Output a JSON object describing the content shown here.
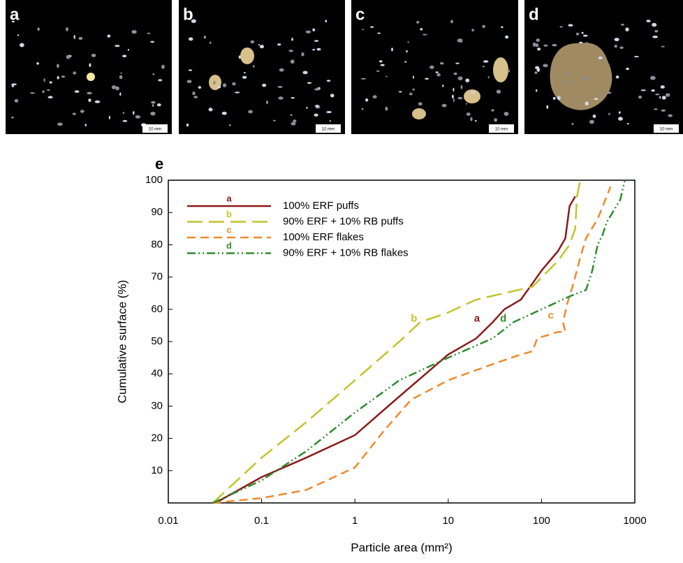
{
  "panels": [
    {
      "label": "a",
      "scale": "10 mm"
    },
    {
      "label": "b",
      "scale": "10 mm"
    },
    {
      "label": "c",
      "scale": "10 mm"
    },
    {
      "label": "d",
      "scale": "10 mm"
    }
  ],
  "chart_data": {
    "type": "line",
    "panel_label": "e",
    "x_label": "Particle area (mm²)",
    "y_label": "Cumulative surface (%)",
    "xlog": true,
    "xlim": [
      0.01,
      1000
    ],
    "xticks": [
      0.01,
      0.1,
      1,
      10,
      100,
      1000
    ],
    "ylim": [
      0,
      100
    ],
    "yticks": [
      10,
      20,
      30,
      40,
      50,
      60,
      70,
      80,
      90,
      100
    ],
    "legend": "upper left",
    "series": [
      {
        "name": "100% ERF puffs",
        "tag": "a",
        "tag_x": 20.3,
        "tag_y": 57,
        "color": "#8b1a1a",
        "dash": "none",
        "x": [
          0.032,
          0.1,
          0.3,
          1,
          3,
          10,
          20,
          30,
          40,
          60,
          80,
          100,
          150,
          180,
          200,
          230
        ],
        "values": [
          0,
          8,
          14,
          21,
          33,
          46,
          51,
          56,
          60,
          63,
          68,
          72,
          78,
          82,
          92,
          95
        ]
      },
      {
        "name": "90% ERF + 10% RB puffs",
        "tag": "b",
        "tag_x": 4.3,
        "tag_y": 57,
        "color": "#c5c22a",
        "dash": "22 9",
        "x": [
          0.03,
          0.1,
          0.3,
          1,
          3,
          5,
          10,
          20,
          40,
          80,
          150,
          200,
          230,
          240,
          260
        ],
        "values": [
          0,
          14,
          25,
          38,
          50,
          56,
          59,
          63,
          65,
          67,
          75,
          80,
          85,
          95,
          100
        ]
      },
      {
        "name": "100% ERF flakes",
        "tag": "c",
        "tag_x": 126,
        "tag_y": 58,
        "color": "#f0892a",
        "dash": "12 7",
        "x": [
          0.03,
          0.1,
          0.3,
          1,
          2,
          4,
          10,
          30,
          60,
          80,
          90,
          150,
          180,
          170,
          190,
          220,
          260,
          300,
          400,
          500,
          550
        ],
        "values": [
          0,
          1.5,
          4,
          11,
          22,
          32,
          38,
          43,
          46,
          47,
          51,
          53,
          53,
          56,
          62,
          68,
          76,
          82,
          88,
          95,
          98
        ]
      },
      {
        "name": "90% ERF + 10% RB flakes",
        "tag": "d",
        "tag_x": 39,
        "tag_y": 57,
        "color": "#2e8b2e",
        "dash": "12 4 2 4 2 4",
        "x": [
          0.03,
          0.1,
          0.3,
          1,
          3,
          10,
          30,
          50,
          100,
          200,
          300,
          350,
          400,
          450,
          500,
          700,
          780
        ],
        "values": [
          0,
          7,
          16,
          28,
          38,
          45,
          51,
          56,
          60,
          64,
          66,
          72,
          80,
          83,
          87,
          94,
          100
        ]
      }
    ]
  }
}
